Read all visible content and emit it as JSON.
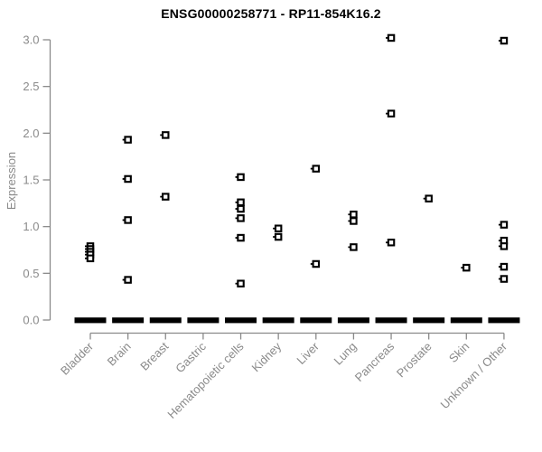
{
  "chart": {
    "title": "ENSG00000258771 - RP11-854K16.2",
    "ylabel": "Expression",
    "colors": {
      "marker": "#000000",
      "zero_bar": "#000000",
      "axis_line": "#8a8a8a",
      "tick_text": "#8a8a8a",
      "title_text": "#000000",
      "background": "#ffffff"
    }
  },
  "chart_data": {
    "type": "scatter",
    "title": "ENSG00000258771 - RP11-854K16.2",
    "xlabel": "",
    "ylabel": "Expression",
    "ylim": [
      0.0,
      3.0
    ],
    "yticks": [
      "0.0",
      "0.5",
      "1.0",
      "1.5",
      "2.0",
      "2.5",
      "3.0"
    ],
    "grid": false,
    "legend": false,
    "marker_style": "small open black square",
    "categories": [
      "Bladder",
      "Brain",
      "Breast",
      "Gastric",
      "Hematopoietic cells",
      "Kidney",
      "Liver",
      "Lung",
      "Pancreas",
      "Prostate",
      "Skin",
      "Unknown / Other"
    ],
    "series": [
      {
        "name": "Bladder",
        "values": [
          0.79,
          0.76,
          0.73,
          0.7,
          0.66
        ]
      },
      {
        "name": "Brain",
        "values": [
          1.93,
          1.51,
          1.07,
          0.43
        ]
      },
      {
        "name": "Breast",
        "values": [
          1.98,
          1.32
        ]
      },
      {
        "name": "Gastric",
        "values": []
      },
      {
        "name": "Hematopoietic cells",
        "values": [
          1.53,
          1.26,
          1.19,
          1.09,
          0.88,
          0.39
        ]
      },
      {
        "name": "Kidney",
        "values": [
          0.98,
          0.89
        ]
      },
      {
        "name": "Liver",
        "values": [
          1.62,
          0.6
        ]
      },
      {
        "name": "Lung",
        "values": [
          1.13,
          1.06,
          0.78
        ]
      },
      {
        "name": "Pancreas",
        "values": [
          3.02,
          2.21,
          0.83
        ]
      },
      {
        "name": "Prostate",
        "values": [
          1.3
        ]
      },
      {
        "name": "Skin",
        "values": [
          0.56
        ]
      },
      {
        "name": "Unknown / Other",
        "values": [
          2.99,
          1.02,
          0.85,
          0.79,
          0.57,
          0.44
        ]
      }
    ],
    "zero_clusters": {
      "value": 0.0,
      "present_in_all_categories": true,
      "note": "Every category shows a dense cluster of overlapping samples at expression 0.0, rendered as a thick black dash on the baseline"
    }
  }
}
